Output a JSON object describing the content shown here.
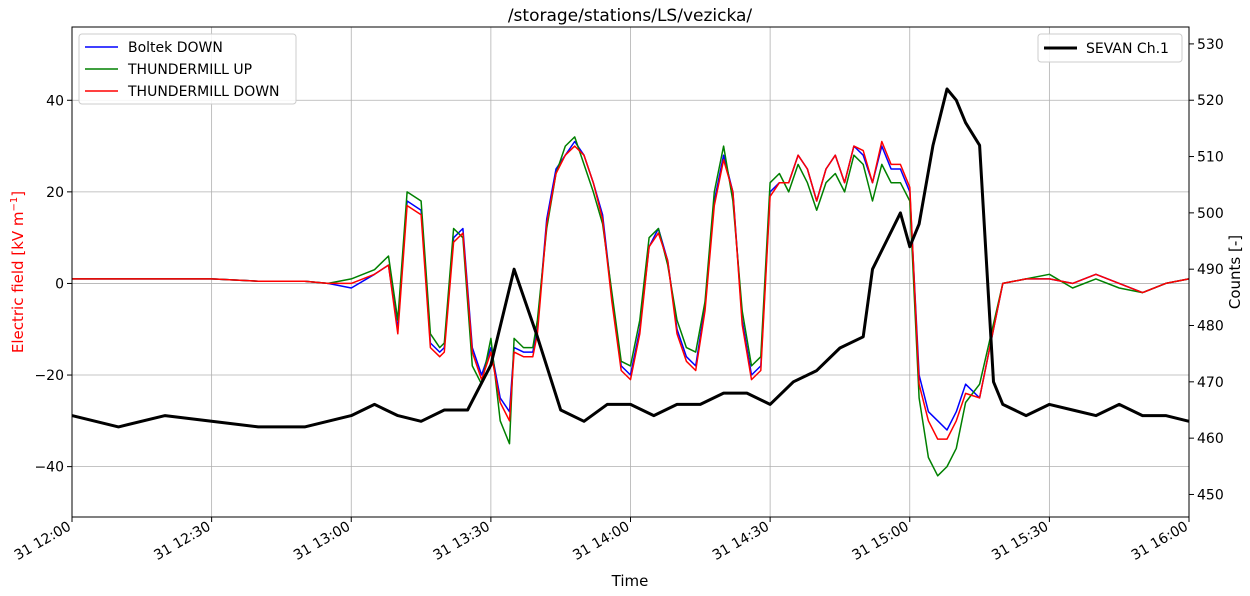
{
  "chart_data": {
    "type": "line",
    "title": "/storage/stations/LS/vezicka/",
    "xlabel": "Time",
    "ylabel_left": "Electric field [kV m",
    "ylabel_left_sup": "−1",
    "ylabel_left_end": "]",
    "ylabel_right": "Counts [-]",
    "ylabel_left_color": "#ff0000",
    "x_ticks": [
      "31 12:00",
      "31 12:30",
      "31 13:00",
      "31 13:30",
      "31 14:00",
      "31 14:30",
      "31 15:00",
      "31 15:30",
      "31 16:00"
    ],
    "xlim_minutes": [
      0,
      240
    ],
    "left_axis": {
      "ylim": [
        -51,
        56
      ],
      "ticks": [
        -40,
        -20,
        0,
        20,
        40
      ]
    },
    "right_axis": {
      "ylim": [
        446,
        533
      ],
      "ticks": [
        450,
        460,
        470,
        480,
        490,
        500,
        510,
        520,
        530
      ]
    },
    "grid": true,
    "legend_left": "top-left",
    "legend_right": "top-right",
    "series": [
      {
        "name": "Boltek DOWN",
        "axis": "left",
        "color": "#0000ff",
        "x": [
          0,
          10,
          20,
          30,
          40,
          50,
          55,
          60,
          65,
          68,
          70,
          72,
          75,
          77,
          79,
          80,
          82,
          84,
          86,
          88,
          90,
          92,
          94,
          95,
          97,
          99,
          100,
          102,
          104,
          106,
          108,
          110,
          112,
          114,
          116,
          118,
          120,
          122,
          124,
          126,
          128,
          130,
          132,
          134,
          136,
          138,
          140,
          142,
          144,
          146,
          148,
          150,
          152,
          154,
          156,
          158,
          160,
          162,
          164,
          166,
          168,
          170,
          172,
          174,
          176,
          178,
          180,
          182,
          184,
          186,
          188,
          190,
          192,
          195,
          200,
          205,
          210,
          215,
          220,
          225,
          230,
          235,
          240
        ],
        "y": [
          1,
          1,
          1,
          1,
          0.5,
          0.5,
          0,
          -1,
          2,
          4,
          -10,
          18,
          16,
          -13,
          -15,
          -14,
          10,
          12,
          -14,
          -20,
          -14,
          -25,
          -28,
          -14,
          -15,
          -15,
          -10,
          14,
          25,
          28,
          31,
          28,
          22,
          15,
          -3,
          -18,
          -20,
          -10,
          8,
          12,
          5,
          -10,
          -16,
          -18,
          -5,
          18,
          28,
          20,
          -8,
          -20,
          -18,
          20,
          22,
          22,
          28,
          25,
          18,
          25,
          28,
          22,
          30,
          28,
          22,
          30,
          25,
          25,
          20,
          -20,
          -28,
          -30,
          -32,
          -28,
          -22,
          -25,
          0,
          1,
          1,
          0,
          2,
          0,
          -2,
          0,
          1
        ]
      },
      {
        "name": "THUNDERMILL UP",
        "axis": "left",
        "color": "#008000",
        "x": [
          0,
          10,
          20,
          30,
          40,
          50,
          55,
          60,
          65,
          68,
          70,
          72,
          75,
          77,
          79,
          80,
          82,
          84,
          86,
          88,
          90,
          92,
          94,
          95,
          97,
          99,
          100,
          102,
          104,
          106,
          108,
          110,
          112,
          114,
          116,
          118,
          120,
          122,
          124,
          126,
          128,
          130,
          132,
          134,
          136,
          138,
          140,
          142,
          144,
          146,
          148,
          150,
          152,
          154,
          156,
          158,
          160,
          162,
          164,
          166,
          168,
          170,
          172,
          174,
          176,
          178,
          180,
          182,
          184,
          186,
          188,
          190,
          192,
          195,
          200,
          205,
          210,
          215,
          220,
          225,
          230,
          235,
          240
        ],
        "y": [
          1,
          1,
          1,
          1,
          0.5,
          0.5,
          0,
          1,
          3,
          6,
          -8,
          20,
          18,
          -11,
          -14,
          -13,
          12,
          10,
          -18,
          -22,
          -12,
          -30,
          -35,
          -12,
          -14,
          -14,
          -8,
          12,
          24,
          30,
          32,
          26,
          20,
          13,
          -2,
          -17,
          -18,
          -8,
          10,
          12,
          4,
          -8,
          -14,
          -15,
          -4,
          20,
          30,
          18,
          -6,
          -18,
          -16,
          22,
          24,
          20,
          26,
          22,
          16,
          22,
          24,
          20,
          28,
          26,
          18,
          26,
          22,
          22,
          18,
          -25,
          -38,
          -42,
          -40,
          -36,
          -26,
          -22,
          0,
          1,
          2,
          -1,
          1,
          -1,
          -2,
          0,
          1
        ]
      },
      {
        "name": "THUNDERMILL DOWN",
        "axis": "left",
        "color": "#ff0000",
        "x": [
          0,
          10,
          20,
          30,
          40,
          50,
          55,
          60,
          65,
          68,
          70,
          72,
          75,
          77,
          79,
          80,
          82,
          84,
          86,
          88,
          90,
          92,
          94,
          95,
          97,
          99,
          100,
          102,
          104,
          106,
          108,
          110,
          112,
          114,
          116,
          118,
          120,
          122,
          124,
          126,
          128,
          130,
          132,
          134,
          136,
          138,
          140,
          142,
          144,
          146,
          148,
          150,
          152,
          154,
          156,
          158,
          160,
          162,
          164,
          166,
          168,
          170,
          172,
          174,
          176,
          178,
          180,
          182,
          184,
          186,
          188,
          190,
          192,
          195,
          200,
          205,
          210,
          215,
          220,
          225,
          230,
          235,
          240
        ],
        "y": [
          1,
          1,
          1,
          1,
          0.5,
          0.5,
          0,
          0,
          2,
          4,
          -11,
          17,
          15,
          -14,
          -16,
          -15,
          9,
          11,
          -15,
          -21,
          -15,
          -26,
          -30,
          -15,
          -16,
          -16,
          -11,
          13,
          24,
          28,
          30,
          28,
          22,
          14,
          -4,
          -19,
          -21,
          -11,
          8,
          11,
          5,
          -11,
          -17,
          -19,
          -6,
          17,
          27,
          20,
          -9,
          -21,
          -19,
          19,
          22,
          22,
          28,
          25,
          18,
          25,
          28,
          22,
          30,
          29,
          22,
          31,
          26,
          26,
          21,
          -22,
          -30,
          -34,
          -34,
          -30,
          -24,
          -25,
          0,
          1,
          1,
          0,
          2,
          0,
          -2,
          0,
          1
        ]
      },
      {
        "name": "SEVAN Ch.1",
        "axis": "right",
        "color": "#000000",
        "x": [
          0,
          10,
          20,
          30,
          40,
          50,
          60,
          65,
          70,
          75,
          80,
          85,
          90,
          95,
          100,
          105,
          110,
          115,
          120,
          125,
          130,
          135,
          140,
          145,
          150,
          155,
          160,
          165,
          170,
          172,
          175,
          178,
          180,
          182,
          185,
          188,
          190,
          192,
          195,
          198,
          200,
          205,
          210,
          215,
          220,
          225,
          230,
          235,
          240
        ],
        "y": [
          464,
          462,
          464,
          463,
          462,
          462,
          464,
          466,
          464,
          463,
          465,
          465,
          473,
          490,
          478,
          465,
          463,
          466,
          466,
          464,
          466,
          466,
          468,
          468,
          466,
          470,
          472,
          476,
          478,
          490,
          495,
          500,
          494,
          498,
          512,
          522,
          520,
          516,
          512,
          470,
          466,
          464,
          466,
          465,
          464,
          466,
          464,
          464,
          463
        ]
      }
    ]
  }
}
